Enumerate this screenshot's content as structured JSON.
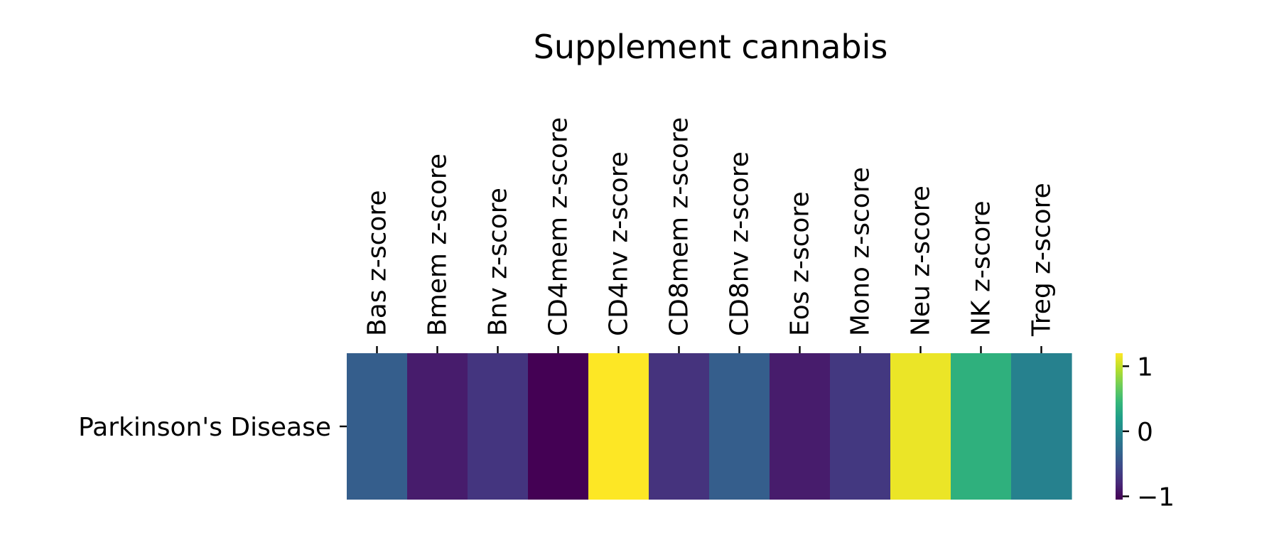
{
  "chart_data": {
    "type": "heatmap",
    "title": "Supplement cannabis",
    "x_categories": [
      "Bas z-score",
      "Bmem z-score",
      "Bnv z-score",
      "CD4mem z-score",
      "CD4nv z-score",
      "CD8mem z-score",
      "CD8nv z-score",
      "Eos z-score",
      "Mono z-score",
      "Neu z-score",
      "NK z-score",
      "Treg z-score"
    ],
    "y_categories": [
      "Parkinson's Disease"
    ],
    "values": [
      [
        -0.38,
        -0.88,
        -0.7,
        -1.05,
        1.2,
        -0.72,
        -0.38,
        -0.88,
        -0.68,
        1.14,
        0.38,
        -0.06
      ]
    ],
    "colorbar": {
      "colormap": "viridis",
      "range": [
        -1.05,
        1.2
      ],
      "ticks": [
        1,
        0,
        -1
      ],
      "tick_labels": [
        "1",
        "0",
        "−1"
      ]
    },
    "legend": "colorbar-right"
  }
}
